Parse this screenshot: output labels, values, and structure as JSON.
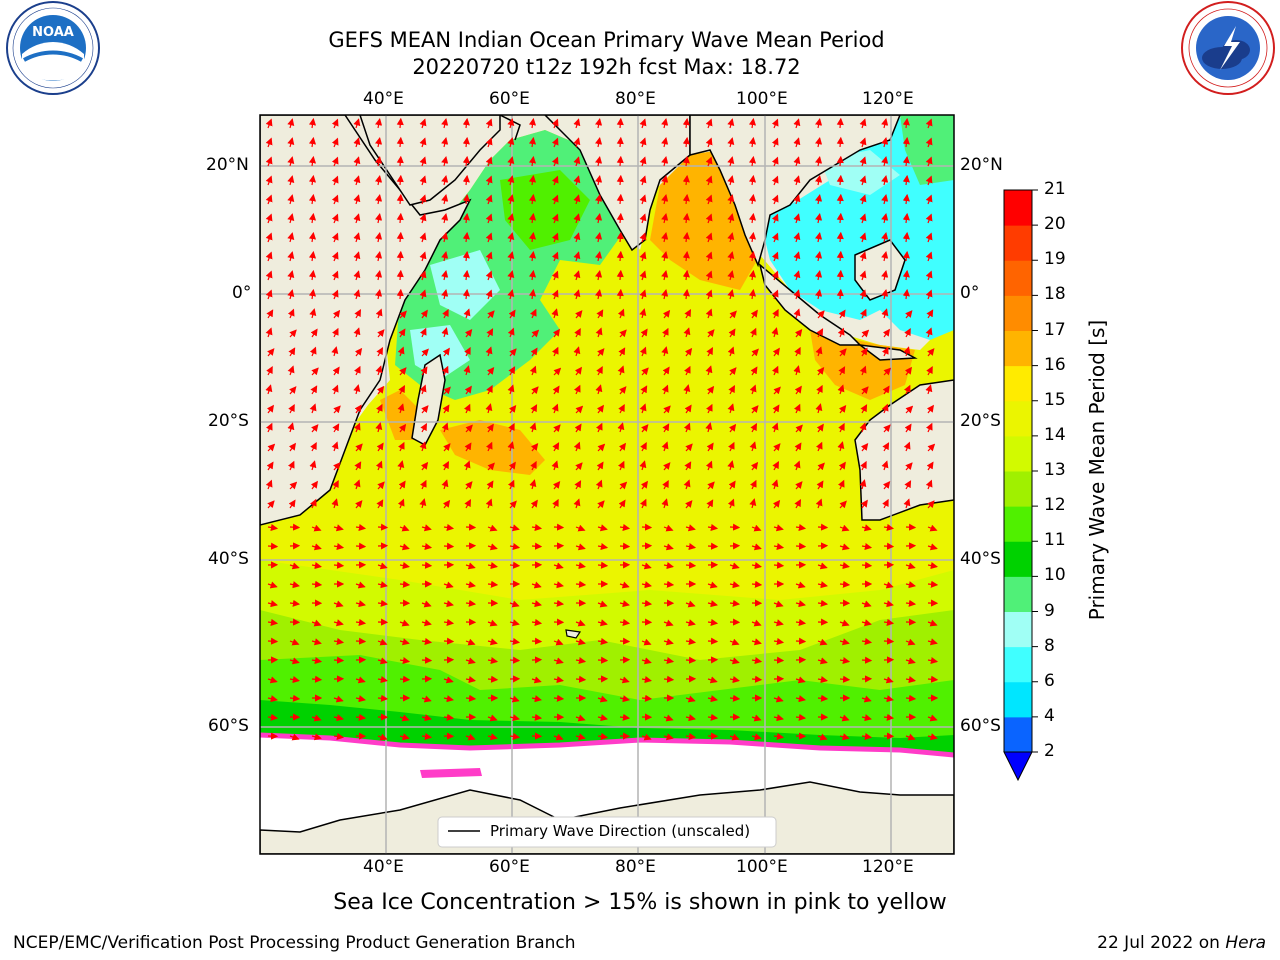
{
  "header": {
    "title_line1": "GEFS MEAN Indian Ocean Primary Wave Mean Period",
    "title_line2": "20220720 t12z 192h fcst   Max: 18.72"
  },
  "logos": {
    "noaa_text": "NOAA",
    "noaa_ring": "NATIONAL OCEANIC AND ATMOSPHERIC ADMINISTRATION · U.S. DEPARTMENT OF COMMERCE",
    "nws_ring": "NATIONAL WEATHER SERVICE"
  },
  "map": {
    "lon_labels": [
      "40°E",
      "60°E",
      "80°E",
      "100°E",
      "120°E"
    ],
    "lat_labels": [
      "20°N",
      "0°",
      "20°S",
      "40°S",
      "60°S"
    ],
    "legend_label": "Primary Wave Direction (unscaled)"
  },
  "colorbar": {
    "label": "Primary Wave Mean Period [s]",
    "ticks": [
      "2",
      "4",
      "6",
      "8",
      "9",
      "10",
      "11",
      "12",
      "13",
      "14",
      "15",
      "16",
      "17",
      "18",
      "19",
      "20",
      "21"
    ],
    "colors": [
      "#0a64ff",
      "#00e6ff",
      "#40ffff",
      "#a0fff5",
      "#50f078",
      "#00d200",
      "#50f000",
      "#a0f000",
      "#d2fa00",
      "#ebf500",
      "#ffeb00",
      "#ffb400",
      "#ff8c00",
      "#ff6400",
      "#ff3c00",
      "#ff0000"
    ],
    "under_color": "#0000ff"
  },
  "subtitle": "Sea Ice Concentration > 15% is shown in pink to yellow",
  "footer": {
    "left": "NCEP/EMC/Verification Post Processing Product Generation Branch",
    "date": "22 Jul 2022 on ",
    "machine": "Hera"
  }
}
